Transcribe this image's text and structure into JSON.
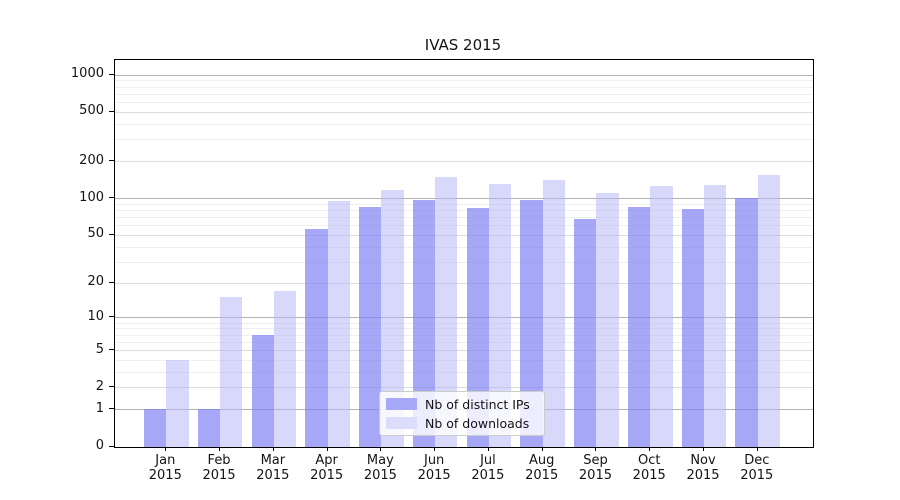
{
  "chart_data": {
    "type": "bar",
    "title": "IVAS 2015",
    "scale": "log1p",
    "categories": [
      "Jan",
      "Feb",
      "Mar",
      "Apr",
      "May",
      "Jun",
      "Jul",
      "Aug",
      "Sep",
      "Oct",
      "Nov",
      "Dec"
    ],
    "year_label": "2015",
    "series": [
      {
        "name": "Nb of distinct IPs",
        "color": "#a8a8f8",
        "fill_rgba": "rgba(130,130,245,0.70)",
        "values": [
          1,
          1,
          7,
          56,
          84,
          97,
          83,
          97,
          68,
          85,
          81,
          100
        ]
      },
      {
        "name": "Nb of downloads",
        "color": "#dcdcfb",
        "fill_rgba": "rgba(180,180,247,0.52)",
        "values": [
          4,
          15,
          17,
          95,
          116,
          148,
          131,
          140,
          110,
          125,
          129,
          155
        ]
      }
    ],
    "y_ticks": [
      0,
      1,
      2,
      5,
      10,
      20,
      50,
      100,
      200,
      500,
      1000
    ],
    "ylim": [
      0,
      1300
    ],
    "grid": {
      "decade_color": "#b3b3b3",
      "sub_color": "#dcdcdc",
      "minor_color": "#efefef",
      "decade_lines": [
        1,
        10,
        100,
        1000
      ],
      "sub_lines": [
        2,
        5,
        20,
        50,
        200,
        500
      ],
      "minor_lines": [
        3,
        4,
        6,
        7,
        8,
        9,
        30,
        40,
        60,
        70,
        80,
        90,
        300,
        400,
        600,
        700,
        800,
        900
      ]
    },
    "legend_position": "inside-bottom-center"
  }
}
